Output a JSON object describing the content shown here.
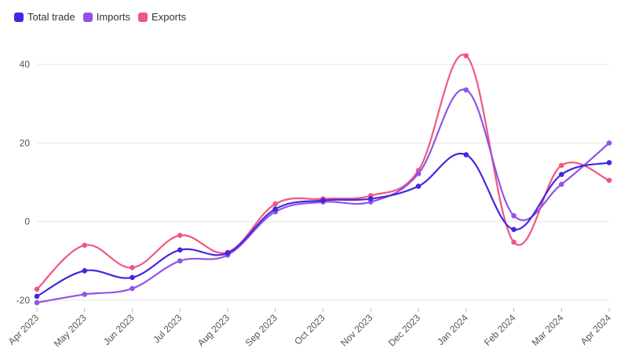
{
  "chart_data": {
    "type": "line",
    "title": "",
    "xlabel": "",
    "ylabel": "",
    "categories": [
      "Apr 2023",
      "May 2023",
      "Jun 2023",
      "Jul 2023",
      "Aug 2023",
      "Sep 2023",
      "Oct 2023",
      "Nov 2023",
      "Dec 2023",
      "Jan 2024",
      "Feb 2024",
      "Mar 2024",
      "Apr 2024"
    ],
    "ylim": [
      -22,
      46
    ],
    "yticks": [
      -20,
      0,
      20,
      40
    ],
    "grid": true,
    "legend": "top-left",
    "series": [
      {
        "name": "Total trade",
        "color": "#4327e0",
        "values": [
          -19,
          -12.5,
          -14.2,
          -7.2,
          -8,
          3.2,
          5.4,
          5.8,
          9,
          17,
          -2,
          12,
          15
        ]
      },
      {
        "name": "Imports",
        "color": "#9153e6",
        "values": [
          -20.6,
          -18.5,
          -17,
          -10,
          -8.5,
          2.5,
          5,
          5,
          12.2,
          33.5,
          1.5,
          9.5,
          20
        ]
      },
      {
        "name": "Exports",
        "color": "#f0577f",
        "values": [
          -17.2,
          -6,
          -11.7,
          -3.5,
          -7.8,
          4.5,
          5.8,
          6.6,
          13,
          42.2,
          -5.2,
          14.3,
          10.5
        ]
      }
    ]
  }
}
